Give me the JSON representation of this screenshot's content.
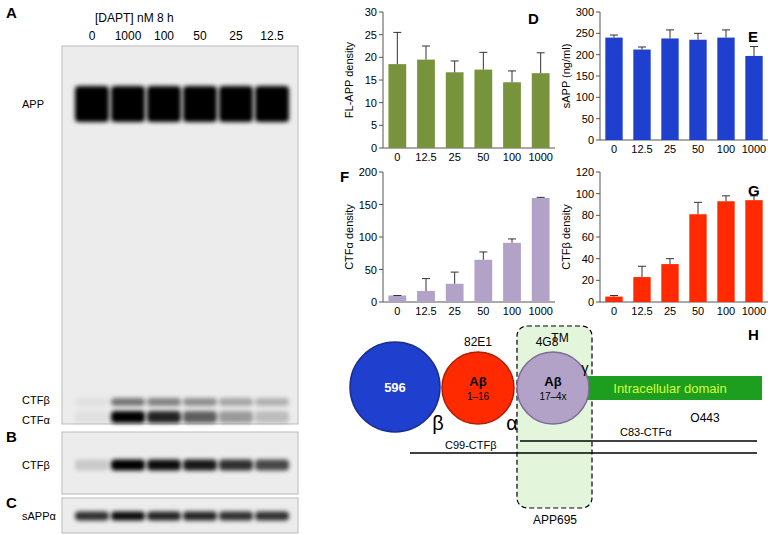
{
  "chart_data": [
    {
      "type": "bar",
      "panel": "D",
      "y_label": "FL-APP density",
      "categories": [
        "0",
        "12.5",
        "25",
        "50",
        "100",
        "1000"
      ],
      "values": [
        18.5,
        19.5,
        16.7,
        17.3,
        14.5,
        16.5
      ],
      "errors": [
        7,
        3,
        2.5,
        3.8,
        2.5,
        4.5
      ],
      "color": "#77933c",
      "ylim": [
        0,
        30
      ],
      "yticks": [
        0,
        5,
        10,
        15,
        20,
        25,
        30
      ]
    },
    {
      "type": "bar",
      "panel": "E",
      "y_label": "sAPP (ng/ml)",
      "categories": [
        "0",
        "12.5",
        "25",
        "50",
        "100",
        "1000"
      ],
      "values": [
        240,
        212,
        238,
        235,
        240,
        197
      ],
      "errors": [
        6,
        6,
        20,
        15,
        18,
        22
      ],
      "color": "#1f3fcf",
      "ylim": [
        0,
        300
      ],
      "yticks": [
        0,
        50,
        100,
        150,
        200,
        250,
        300
      ]
    },
    {
      "type": "bar",
      "panel": "F",
      "y_label": "CTFα density",
      "categories": [
        "0",
        "12.5",
        "25",
        "50",
        "100",
        "1000"
      ],
      "values": [
        10,
        17,
        28,
        65,
        91,
        160
      ],
      "errors": [
        0,
        19,
        18,
        12,
        6,
        1
      ],
      "color": "#b3a2c7",
      "ylim": [
        0,
        200
      ],
      "yticks": [
        0,
        50,
        100,
        150,
        200
      ]
    },
    {
      "type": "bar",
      "panel": "G",
      "y_label": "CTFβ density",
      "categories": [
        "0",
        "12.5",
        "25",
        "50",
        "100",
        "1000"
      ],
      "values": [
        5,
        23,
        35,
        81,
        93,
        94
      ],
      "errors": [
        1,
        10,
        5,
        11,
        5,
        4
      ],
      "color": "#ff2a00",
      "ylim": [
        0,
        120
      ],
      "yticks": [
        0,
        20,
        40,
        60,
        80,
        100,
        120
      ]
    }
  ],
  "blots": [
    {
      "panel": "A",
      "title": "[DAPT] nM 8 h",
      "lanes": [
        "0",
        "1000",
        "100",
        "50",
        "25",
        "12.5"
      ],
      "bands": [
        {
          "label": "APP",
          "intensity": [
            1,
            1,
            1,
            1,
            1,
            1
          ]
        },
        {
          "label": "CTFβ",
          "intensity": [
            0.05,
            0.5,
            0.45,
            0.4,
            0.3,
            0.25
          ]
        },
        {
          "label": "CTFα",
          "intensity": [
            0.05,
            1,
            0.85,
            0.6,
            0.35,
            0.2
          ]
        }
      ]
    },
    {
      "panel": "B",
      "bands": [
        {
          "label": "CTFβ",
          "intensity": [
            0.15,
            1,
            0.95,
            0.9,
            0.8,
            0.7
          ]
        }
      ]
    },
    {
      "panel": "C",
      "bands": [
        {
          "label": "sAPPα",
          "intensity": [
            0.8,
            0.95,
            0.85,
            0.85,
            0.8,
            0.8
          ]
        }
      ]
    }
  ],
  "diagram": {
    "panel": "H",
    "nodes": [
      {
        "label": "596"
      },
      {
        "label": "Aβ",
        "sublabel": "1–16",
        "antibody": "82E1"
      },
      {
        "label": "Aβ",
        "sublabel": "17–4x",
        "antibody": "4G8"
      }
    ],
    "tm": "TM",
    "intracellular": "Intracellular domain",
    "antibody_c": "O443",
    "sites": [
      "β",
      "α",
      "γ"
    ],
    "fragments": [
      "C83-CTFα",
      "C99-CTFβ"
    ],
    "construct": "APP695"
  }
}
